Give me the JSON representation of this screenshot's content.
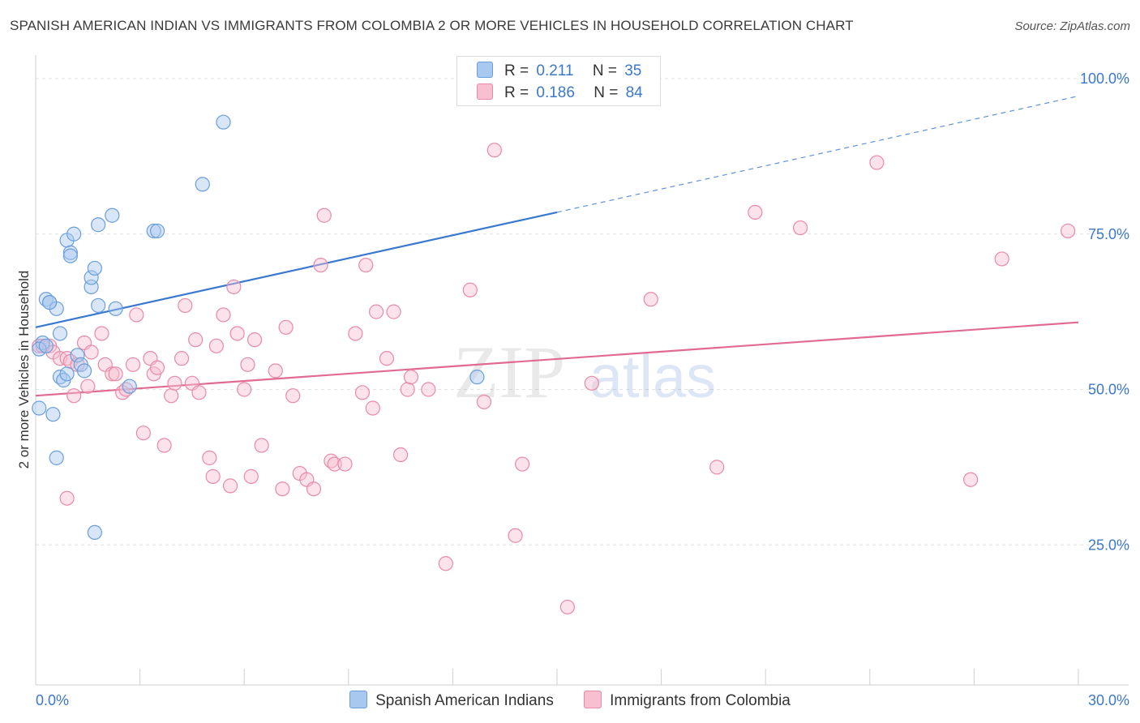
{
  "title": "SPANISH AMERICAN INDIAN VS IMMIGRANTS FROM COLOMBIA 2 OR MORE VEHICLES IN HOUSEHOLD CORRELATION CHART",
  "source": "Source: ZipAtlas.com",
  "watermark": {
    "part1": "ZIP",
    "part2": "atlas"
  },
  "legend": {
    "r_label": "R =",
    "n_label": "N =",
    "rows": [
      {
        "r": "0.211",
        "n": "35",
        "color": "#a8c8f0",
        "border": "#6a9edc"
      },
      {
        "r": "0.186",
        "n": "84",
        "color": "#f8bfd0",
        "border": "#e88aa8"
      }
    ]
  },
  "bottom_legend": [
    {
      "label": "Spanish American Indians",
      "color": "#a8c8f0",
      "border": "#6a9edc"
    },
    {
      "label": "Immigrants from Colombia",
      "color": "#f8bfd0",
      "border": "#e88aa8"
    }
  ],
  "chart_data": {
    "type": "scatter",
    "title": "SPANISH AMERICAN INDIAN VS IMMIGRANTS FROM COLOMBIA 2 OR MORE VEHICLES IN HOUSEHOLD CORRELATION CHART",
    "xlabel": "",
    "ylabel": "2 or more Vehicles in Household",
    "xlim": [
      0,
      30
    ],
    "ylim": [
      0,
      100
    ],
    "x_tick_labels": [
      "0.0%",
      "30.0%"
    ],
    "y_tick_labels": [
      "25.0%",
      "50.0%",
      "75.0%",
      "100.0%"
    ],
    "y_ticks": [
      25,
      50,
      75,
      100
    ],
    "grid": true,
    "series": [
      {
        "name": "Spanish American Indians",
        "color": "#6a9edc",
        "fill": "#a8c8f0",
        "line_color": "#3a78d0",
        "trend": {
          "x0": 0,
          "y0": 60.0,
          "x1": 15,
          "y1": 78.5,
          "dash_x1": 30,
          "dash_y1": 97.2
        },
        "points": [
          [
            0.1,
            47.0
          ],
          [
            0.2,
            57.5
          ],
          [
            0.1,
            56.5
          ],
          [
            0.3,
            64.5
          ],
          [
            0.4,
            64.0
          ],
          [
            0.6,
            63.0
          ],
          [
            0.7,
            59.0
          ],
          [
            0.7,
            52.0
          ],
          [
            0.8,
            51.5
          ],
          [
            0.9,
            52.5
          ],
          [
            0.9,
            74.0
          ],
          [
            1.0,
            72.0
          ],
          [
            1.0,
            71.5
          ],
          [
            1.1,
            75.0
          ],
          [
            0.5,
            46.0
          ],
          [
            0.6,
            39.0
          ],
          [
            1.2,
            55.5
          ],
          [
            1.3,
            54.0
          ],
          [
            1.4,
            53.0
          ],
          [
            1.6,
            66.5
          ],
          [
            1.6,
            68.0
          ],
          [
            1.7,
            69.5
          ],
          [
            1.8,
            63.5
          ],
          [
            1.8,
            76.5
          ],
          [
            1.7,
            27.0
          ],
          [
            2.2,
            78.0
          ],
          [
            2.3,
            63.0
          ],
          [
            2.7,
            50.5
          ],
          [
            3.4,
            75.5
          ],
          [
            3.5,
            75.5
          ],
          [
            4.8,
            83.0
          ],
          [
            5.4,
            93.0
          ],
          [
            12.7,
            52.0
          ],
          [
            0.3,
            57.0
          ],
          [
            0.4,
            64.0
          ]
        ]
      },
      {
        "name": "Immigrants from Colombia",
        "color": "#e88aa8",
        "fill": "#f8bfd0",
        "line_color": "#e06a94",
        "trend": {
          "x0": 0,
          "y0": 49.0,
          "x1": 30,
          "y1": 60.8
        },
        "points": [
          [
            0.1,
            57.0
          ],
          [
            0.4,
            57.0
          ],
          [
            0.5,
            56.0
          ],
          [
            0.7,
            55.0
          ],
          [
            0.9,
            55.0
          ],
          [
            1.0,
            54.5
          ],
          [
            1.1,
            49.0
          ],
          [
            0.9,
            32.5
          ],
          [
            1.2,
            54.0
          ],
          [
            1.4,
            57.5
          ],
          [
            1.5,
            50.5
          ],
          [
            1.6,
            56.0
          ],
          [
            1.9,
            59.0
          ],
          [
            2.0,
            54.0
          ],
          [
            2.2,
            52.5
          ],
          [
            2.3,
            52.5
          ],
          [
            2.5,
            49.5
          ],
          [
            2.6,
            50.0
          ],
          [
            2.8,
            54.0
          ],
          [
            2.9,
            62.0
          ],
          [
            3.1,
            43.0
          ],
          [
            3.3,
            55.0
          ],
          [
            3.4,
            52.5
          ],
          [
            3.5,
            53.5
          ],
          [
            3.7,
            41.0
          ],
          [
            3.9,
            49.0
          ],
          [
            4.0,
            51.0
          ],
          [
            4.2,
            55.0
          ],
          [
            4.3,
            63.5
          ],
          [
            4.5,
            51.0
          ],
          [
            4.6,
            58.0
          ],
          [
            4.7,
            49.5
          ],
          [
            5.0,
            39.0
          ],
          [
            5.1,
            36.0
          ],
          [
            5.2,
            57.0
          ],
          [
            5.4,
            62.0
          ],
          [
            5.6,
            34.5
          ],
          [
            5.7,
            66.5
          ],
          [
            5.8,
            59.0
          ],
          [
            6.0,
            50.0
          ],
          [
            6.1,
            54.0
          ],
          [
            6.2,
            36.0
          ],
          [
            6.3,
            58.0
          ],
          [
            6.5,
            41.0
          ],
          [
            6.9,
            53.0
          ],
          [
            7.1,
            34.0
          ],
          [
            7.2,
            60.0
          ],
          [
            7.4,
            49.0
          ],
          [
            7.6,
            36.5
          ],
          [
            7.8,
            35.5
          ],
          [
            8.0,
            34.0
          ],
          [
            8.2,
            70.0
          ],
          [
            8.3,
            78.0
          ],
          [
            8.5,
            38.5
          ],
          [
            8.6,
            38.0
          ],
          [
            8.9,
            38.0
          ],
          [
            9.2,
            59.0
          ],
          [
            9.4,
            49.5
          ],
          [
            9.5,
            70.0
          ],
          [
            9.7,
            47.0
          ],
          [
            9.8,
            62.5
          ],
          [
            10.1,
            55.0
          ],
          [
            10.3,
            62.5
          ],
          [
            10.5,
            39.5
          ],
          [
            10.7,
            50.0
          ],
          [
            10.8,
            52.0
          ],
          [
            11.3,
            50.0
          ],
          [
            11.8,
            22.0
          ],
          [
            12.5,
            66.0
          ],
          [
            12.9,
            48.0
          ],
          [
            13.2,
            88.5
          ],
          [
            13.8,
            26.5
          ],
          [
            14.0,
            38.0
          ],
          [
            15.3,
            15.0
          ],
          [
            16.0,
            51.0
          ],
          [
            17.7,
            64.5
          ],
          [
            19.6,
            37.5
          ],
          [
            20.7,
            78.5
          ],
          [
            22.0,
            76.0
          ],
          [
            24.2,
            86.5
          ],
          [
            26.9,
            35.5
          ],
          [
            27.8,
            71.0
          ],
          [
            29.7,
            75.5
          ],
          [
            0.2,
            57.0
          ]
        ]
      }
    ]
  }
}
